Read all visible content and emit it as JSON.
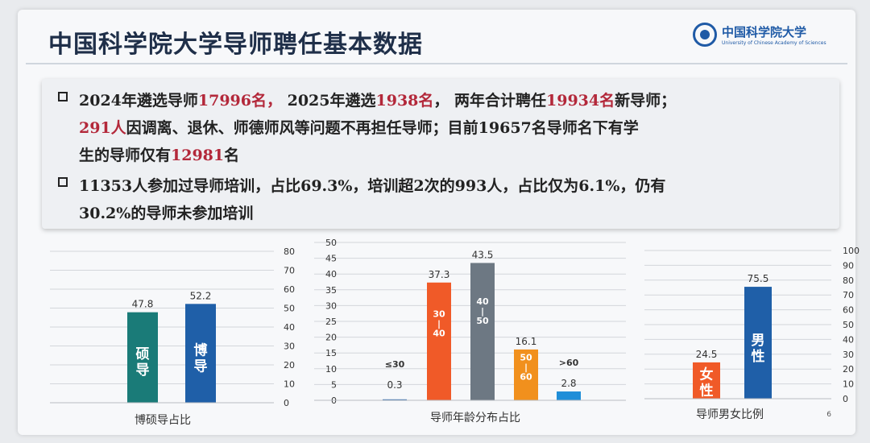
{
  "slide": {
    "title": "中国科学院大学导师聘任基本数据",
    "logo_cn": "中国科学院大学",
    "logo_en": "University of Chinese Academy of Sciences",
    "page_number": "6"
  },
  "bullets": {
    "b1_l1": [
      "2024年遴选导师",
      "17996名，",
      " 2025年遴选",
      "1938名",
      "，  两年合计聘任",
      "19934名",
      "新导师；"
    ],
    "b1_l2": [
      "291人",
      "因调离、退休、师德师风等问题不再担任导师；目前19657名导师名下有学"
    ],
    "b1_l3": [
      "生的导师仅有",
      "12981",
      "名"
    ],
    "b2_l1": "11353人参加过导师培训，占比69.3%，培训超2次的993人，占比仅为6.1%，仍有",
    "b2_l2": "30.2%的导师未参加培训"
  },
  "chart_data": [
    {
      "type": "bar",
      "title": "博硕导占比",
      "categories": [
        "硕导",
        "博导"
      ],
      "values": [
        47.8,
        52.2
      ],
      "value_labels": [
        "47.8",
        "52.2"
      ],
      "colors": [
        "#1a7b78",
        "#1f5fa8"
      ],
      "y_axis_side": "right",
      "ylim": [
        0,
        80
      ],
      "yticks": [
        0,
        10,
        20,
        30,
        40,
        50,
        60,
        70,
        80
      ],
      "grid": true
    },
    {
      "type": "bar",
      "title": "导师年龄分布占比",
      "categories": [
        "≤30",
        "30—40",
        "40—50",
        "50—60",
        ">60"
      ],
      "values": [
        0.3,
        37.3,
        43.5,
        16.1,
        2.8
      ],
      "value_labels": [
        "0.3",
        "37.3",
        "43.5",
        "16.1",
        "2.8"
      ],
      "colors": [
        "#1f5fa8",
        "#f05a28",
        "#6d7883",
        "#f1901d",
        "#1f8ed8"
      ],
      "y_axis_side": "left",
      "ylim": [
        0,
        50
      ],
      "yticks": [
        0,
        5,
        10,
        15,
        20,
        25,
        30,
        35,
        40,
        45,
        50
      ],
      "grid": true
    },
    {
      "type": "bar",
      "title": "导师男女比例",
      "categories": [
        "女性",
        "男性"
      ],
      "values": [
        24.5,
        75.5
      ],
      "value_labels": [
        "24.5",
        "75.5"
      ],
      "colors": [
        "#f05a28",
        "#1f5fa8"
      ],
      "y_axis_side": "right",
      "ylim": [
        0,
        100
      ],
      "yticks": [
        0,
        10,
        20,
        30,
        40,
        50,
        60,
        70,
        80,
        90,
        100
      ],
      "grid": true
    }
  ]
}
